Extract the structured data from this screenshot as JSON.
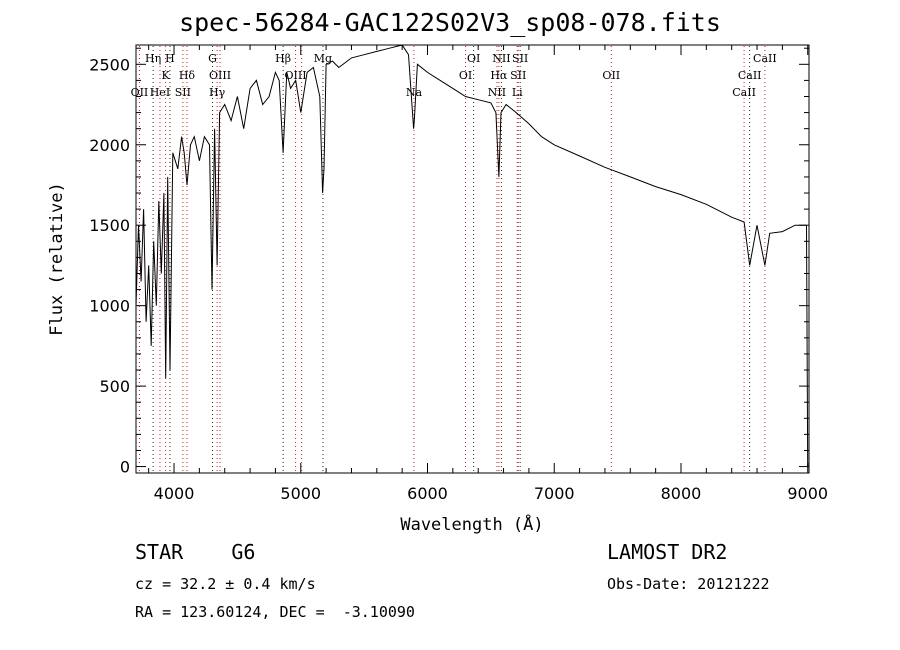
{
  "chart_data": {
    "type": "line",
    "title": "spec-56284-GAC122S02V3_sp08-078.fits",
    "xlabel": "Wavelength (Å)",
    "ylabel": "Flux (relative)",
    "xlim": [
      3700,
      9010
    ],
    "ylim": [
      -40,
      2620
    ],
    "xticks": [
      4000,
      5000,
      6000,
      7000,
      8000,
      9000
    ],
    "yticks": [
      0,
      500,
      1000,
      1500,
      2000,
      2500
    ],
    "grid": false,
    "series": [
      {
        "x": [
          3700,
          3720,
          3740,
          3760,
          3780,
          3800,
          3820,
          3840,
          3860,
          3880,
          3900,
          3920,
          3934,
          3950,
          3968,
          3990,
          4010,
          4030,
          4060,
          4080,
          4102,
          4130,
          4160,
          4200,
          4240,
          4280,
          4300,
          4320,
          4340,
          4360,
          4400,
          4450,
          4500,
          4550,
          4600,
          4650,
          4700,
          4750,
          4800,
          4830,
          4861,
          4890,
          4920,
          4960,
          5000,
          5050,
          5100,
          5150,
          5172,
          5183,
          5200,
          5250,
          5300,
          5400,
          5500,
          5600,
          5700,
          5800,
          5850,
          5890,
          5896,
          5920,
          6000,
          6100,
          6200,
          6300,
          6400,
          6500,
          6540,
          6563,
          6580,
          6620,
          6700,
          6800,
          6900,
          7000,
          7200,
          7400,
          7600,
          7800,
          8000,
          8200,
          8400,
          8498,
          8542,
          8600,
          8662,
          8700,
          8800,
          8900,
          8990,
          9000
        ],
        "y": [
          1000,
          1500,
          1150,
          1600,
          900,
          1250,
          750,
          1400,
          1000,
          1650,
          1200,
          1700,
          550,
          1800,
          600,
          1950,
          1900,
          1850,
          2050,
          1950,
          1750,
          2000,
          2050,
          1900,
          2050,
          2000,
          1100,
          2100,
          1250,
          2200,
          2250,
          2150,
          2300,
          2100,
          2350,
          2400,
          2250,
          2300,
          2450,
          2400,
          1950,
          2450,
          2350,
          2400,
          2200,
          2450,
          2480,
          2300,
          1700,
          1850,
          2500,
          2520,
          2480,
          2540,
          2560,
          2580,
          2600,
          2620,
          2560,
          2100,
          2150,
          2500,
          2450,
          2400,
          2350,
          2300,
          2280,
          2260,
          2200,
          1800,
          2200,
          2250,
          2200,
          2130,
          2050,
          2000,
          1930,
          1860,
          1800,
          1740,
          1690,
          1630,
          1550,
          1520,
          1250,
          1500,
          1250,
          1450,
          1460,
          1500,
          1500,
          0
        ]
      }
    ],
    "line_markers": [
      {
        "x": 3727,
        "label": "OII",
        "row": 3
      },
      {
        "x": 3835,
        "label": "Hη",
        "row": 1
      },
      {
        "x": 3889,
        "label": "HeI",
        "row": 3
      },
      {
        "x": 3934,
        "label": "K",
        "row": 2
      },
      {
        "x": 3968,
        "label": "H",
        "row": 1
      },
      {
        "x": 4070,
        "label": "SII",
        "row": 3
      },
      {
        "x": 4102,
        "label": "Hδ",
        "row": 2
      },
      {
        "x": 4304,
        "label": "G",
        "row": 1
      },
      {
        "x": 4340,
        "label": "Hγ",
        "row": 3
      },
      {
        "x": 4363,
        "label": "OIII",
        "row": 2
      },
      {
        "x": 4861,
        "label": "Hβ",
        "row": 1
      },
      {
        "x": 4959,
        "label": "OIII",
        "row": 2
      },
      {
        "x": 5007,
        "label": "",
        "row": 2
      },
      {
        "x": 5175,
        "label": "Mg",
        "row": 1
      },
      {
        "x": 5893,
        "label": "Na",
        "row": 3
      },
      {
        "x": 6300,
        "label": "OI",
        "row": 2
      },
      {
        "x": 6364,
        "label": "OI",
        "row": 1
      },
      {
        "x": 6548,
        "label": "NII",
        "row": 3
      },
      {
        "x": 6563,
        "label": "Hα",
        "row": 2
      },
      {
        "x": 6583,
        "label": "NII",
        "row": 1
      },
      {
        "x": 6708,
        "label": "Li",
        "row": 3
      },
      {
        "x": 6716,
        "label": "SII",
        "row": 2
      },
      {
        "x": 6731,
        "label": "SII",
        "row": 1
      },
      {
        "x": 7450,
        "label": "OII",
        "row": 2
      },
      {
        "x": 8498,
        "label": "CaII",
        "row": 3
      },
      {
        "x": 8542,
        "label": "CaII",
        "row": 2
      },
      {
        "x": 8662,
        "label": "CaII",
        "row": 1
      }
    ]
  },
  "info": {
    "object_class": "STAR    G6",
    "cz": "cz = 32.2 ± 0.4 km/s",
    "radec": "RA = 123.60124, DEC =  -3.10090",
    "survey": "LAMOST DR2",
    "obs_date": "Obs-Date: 20121222"
  },
  "colors": {
    "spectrum": "#000000",
    "marker_line": "#d22020",
    "marker_line_alt": "#222222",
    "axes": "#000000"
  }
}
